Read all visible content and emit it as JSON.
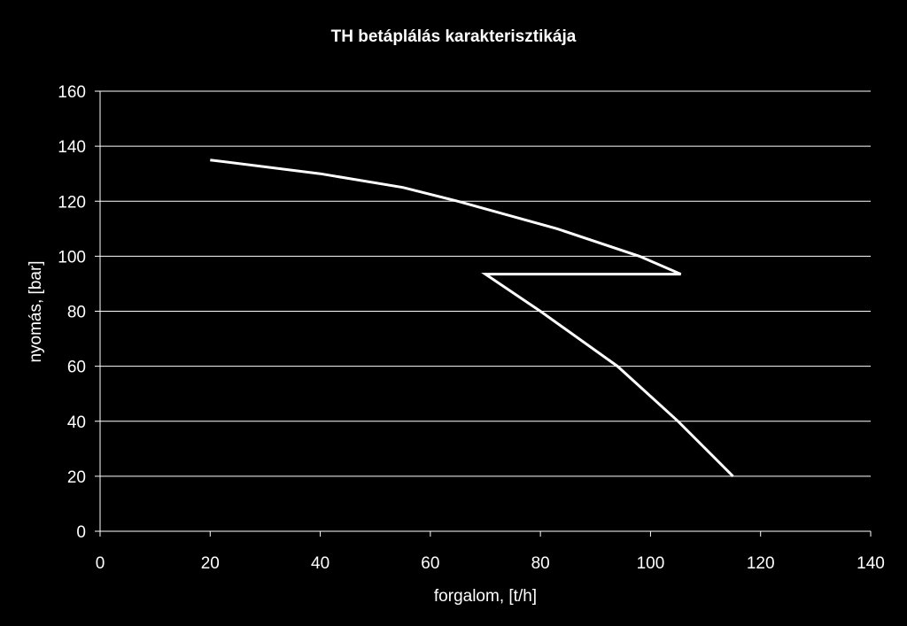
{
  "chart_data": {
    "type": "line",
    "title": "TH betáplálás karakterisztikája",
    "xlabel": "forgalom, [t/h]",
    "ylabel": "nyomás, [bar]",
    "xlim": [
      0,
      140
    ],
    "ylim": [
      0,
      160
    ],
    "x_ticks": [
      0,
      20,
      40,
      60,
      80,
      100,
      120,
      140
    ],
    "y_ticks": [
      0,
      20,
      40,
      60,
      80,
      100,
      120,
      140,
      160
    ],
    "grid": true,
    "legend": "none",
    "series": [
      {
        "x": [
          20,
          40,
          55,
          65,
          83,
          98,
          105.5,
          70,
          80,
          94,
          105,
          115
        ],
        "y": [
          135,
          130,
          125,
          120,
          110,
          100,
          93.5,
          93.5,
          80,
          60,
          40,
          20
        ]
      }
    ]
  },
  "colors": {
    "background": "#000000",
    "foreground": "#ffffff",
    "gridline": "#ffffff",
    "series_line": "#ffffff"
  }
}
